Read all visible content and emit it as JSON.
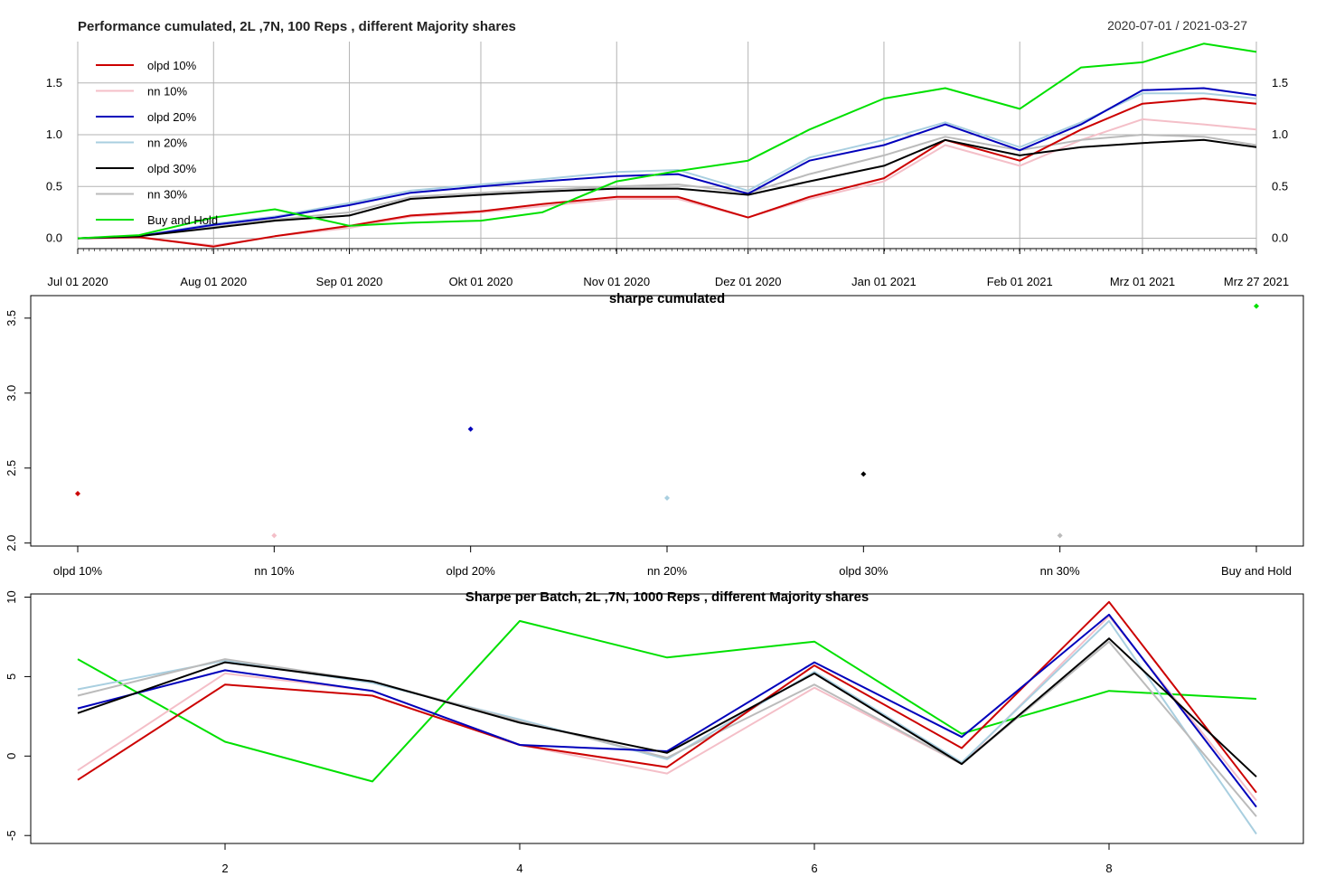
{
  "series_styles": [
    {
      "name": "olpd 10%",
      "color": "#cc0000"
    },
    {
      "name": "nn 10%",
      "color": "#f4bfc8"
    },
    {
      "name": "olpd 20%",
      "color": "#0000bb"
    },
    {
      "name": "nn 20%",
      "color": "#a9cfe0"
    },
    {
      "name": "olpd 30%",
      "color": "#000000"
    },
    {
      "name": "nn 30%",
      "color": "#bbbbbb"
    },
    {
      "name": "Buy and Hold",
      "color": "#00e000"
    }
  ],
  "chart_data": [
    {
      "type": "line",
      "title": "Performance cumulated,  2L ,7N,  100  Reps , different Majority shares",
      "date_range": "2020-07-01 / 2021-03-27",
      "xlabel": "",
      "ylabel": "",
      "x_ticks": [
        "Jul 01 2020",
        "Aug 01 2020",
        "Sep 01 2020",
        "Okt 01 2020",
        "Nov 01 2020",
        "Dez 01 2020",
        "Jan 01 2021",
        "Feb 01 2021",
        "Mrz 01 2021",
        "Mrz 27 2021"
      ],
      "y_ticks": [
        "0.0",
        "0.5",
        "1.0",
        "1.5"
      ],
      "ylim": [
        -0.1,
        1.9
      ],
      "grid": true,
      "legend": "top-left",
      "x": [
        "2020-07-01",
        "2020-07-15",
        "2020-08-01",
        "2020-08-15",
        "2020-09-01",
        "2020-09-15",
        "2020-10-01",
        "2020-10-15",
        "2020-11-01",
        "2020-11-15",
        "2020-12-01",
        "2020-12-15",
        "2021-01-01",
        "2021-01-15",
        "2021-02-01",
        "2021-02-15",
        "2021-03-01",
        "2021-03-15",
        "2021-03-27"
      ],
      "series": [
        {
          "name": "olpd 10%",
          "values": [
            0.0,
            0.01,
            -0.08,
            0.02,
            0.12,
            0.22,
            0.26,
            0.33,
            0.4,
            0.4,
            0.2,
            0.4,
            0.58,
            0.95,
            0.75,
            1.05,
            1.3,
            1.35,
            1.3
          ]
        },
        {
          "name": "nn 10%",
          "values": [
            0.0,
            0.01,
            -0.07,
            0.02,
            0.1,
            0.21,
            0.25,
            0.31,
            0.38,
            0.38,
            0.2,
            0.38,
            0.55,
            0.9,
            0.7,
            0.95,
            1.15,
            1.1,
            1.05
          ]
        },
        {
          "name": "olpd 20%",
          "values": [
            0.0,
            0.02,
            0.13,
            0.2,
            0.32,
            0.44,
            0.5,
            0.55,
            0.6,
            0.62,
            0.43,
            0.75,
            0.9,
            1.1,
            0.85,
            1.1,
            1.43,
            1.45,
            1.38
          ]
        },
        {
          "name": "nn 20%",
          "values": [
            0.0,
            0.02,
            0.14,
            0.21,
            0.34,
            0.46,
            0.52,
            0.57,
            0.64,
            0.66,
            0.46,
            0.78,
            0.95,
            1.12,
            0.88,
            1.12,
            1.4,
            1.4,
            1.35
          ]
        },
        {
          "name": "olpd 30%",
          "values": [
            0.0,
            0.02,
            0.1,
            0.17,
            0.22,
            0.38,
            0.42,
            0.45,
            0.48,
            0.48,
            0.42,
            0.55,
            0.7,
            0.95,
            0.8,
            0.88,
            0.92,
            0.95,
            0.88
          ]
        },
        {
          "name": "nn 30%",
          "values": [
            0.0,
            0.02,
            0.11,
            0.18,
            0.25,
            0.4,
            0.44,
            0.47,
            0.5,
            0.52,
            0.44,
            0.62,
            0.8,
            0.98,
            0.85,
            0.95,
            1.0,
            0.98,
            0.9
          ]
        },
        {
          "name": "Buy and Hold",
          "values": [
            0.0,
            0.03,
            0.2,
            0.28,
            0.12,
            0.15,
            0.17,
            0.25,
            0.55,
            0.65,
            0.75,
            1.05,
            1.35,
            1.45,
            1.25,
            1.65,
            1.7,
            1.88,
            1.8
          ]
        }
      ]
    },
    {
      "type": "scatter",
      "title": "sharpe cumulated",
      "xlabel": "",
      "ylabel": "",
      "categories": [
        "olpd 10%",
        "nn 10%",
        "olpd 20%",
        "nn 20%",
        "olpd 30%",
        "nn 30%",
        "Buy and Hold"
      ],
      "values": [
        2.33,
        2.05,
        2.76,
        2.3,
        2.46,
        2.05,
        3.58
      ],
      "y_ticks": [
        "2.0",
        "2.5",
        "3.0",
        "3.5"
      ],
      "ylim": [
        1.98,
        3.65
      ],
      "grid": false
    },
    {
      "type": "line",
      "title": "Sharpe per Batch,  2L ,7N,  1000  Reps , different Majority shares",
      "xlabel": "",
      "ylabel": "",
      "x": [
        1,
        2,
        3,
        4,
        5,
        6,
        7,
        8,
        9
      ],
      "x_ticks": [
        "2",
        "4",
        "6",
        "8"
      ],
      "y_ticks": [
        "-5",
        "0",
        "5",
        "10"
      ],
      "ylim": [
        -5.5,
        10.2
      ],
      "grid": false,
      "series": [
        {
          "name": "olpd 10%",
          "values": [
            -1.5,
            4.5,
            3.8,
            0.7,
            -0.7,
            5.7,
            0.5,
            9.7,
            -2.3
          ]
        },
        {
          "name": "nn 10%",
          "values": [
            -0.9,
            5.2,
            4.1,
            0.7,
            -1.1,
            4.3,
            -0.5,
            8.8,
            -2.8
          ]
        },
        {
          "name": "olpd 20%",
          "values": [
            3.0,
            5.4,
            4.1,
            0.7,
            0.3,
            5.9,
            1.2,
            8.9,
            -3.2
          ]
        },
        {
          "name": "nn 20%",
          "values": [
            4.2,
            6.0,
            4.6,
            2.3,
            -0.2,
            5.3,
            -0.4,
            8.5,
            -4.9
          ]
        },
        {
          "name": "olpd 30%",
          "values": [
            2.7,
            5.9,
            4.7,
            2.1,
            0.2,
            5.2,
            -0.5,
            7.4,
            -1.3
          ]
        },
        {
          "name": "nn 30%",
          "values": [
            3.8,
            6.1,
            4.7,
            2.2,
            -0.1,
            4.5,
            -0.5,
            7.2,
            -3.8
          ]
        },
        {
          "name": "Buy and Hold",
          "values": [
            6.1,
            0.9,
            -1.6,
            8.5,
            6.2,
            7.2,
            1.4,
            4.1,
            3.6
          ]
        }
      ]
    }
  ]
}
